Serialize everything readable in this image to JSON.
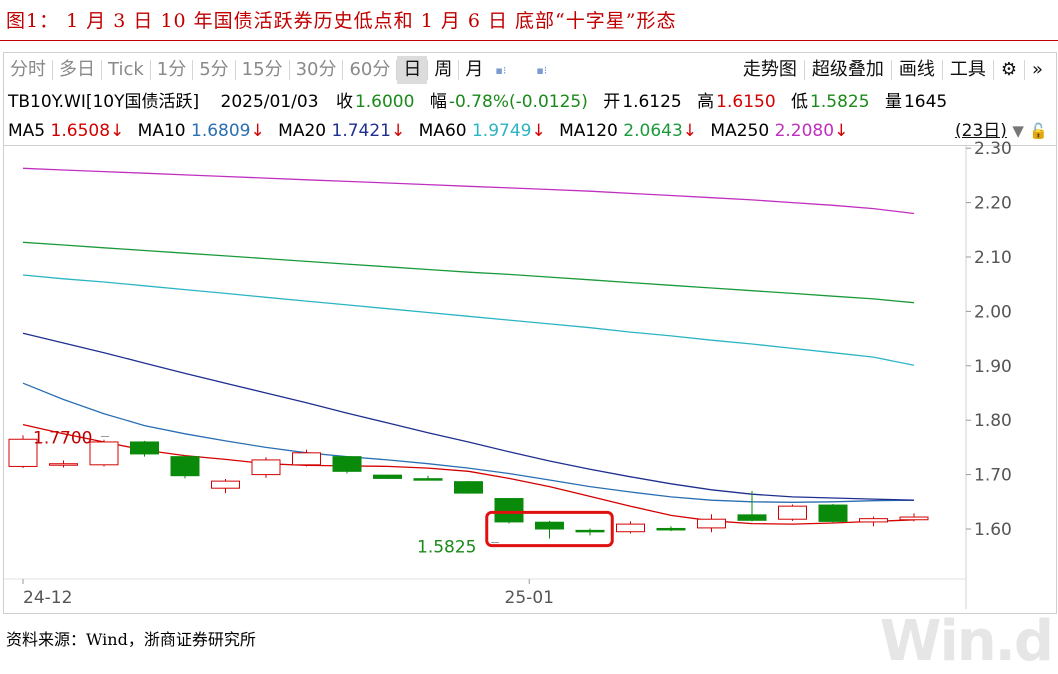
{
  "figure_title": "图1：  1 月 3 日 10 年国债活跃券历史低点和 1 月 6 日  底部“十字星”形态",
  "source": "资料来源：Wind，浙商证券研究所",
  "toolbar": {
    "left_items": [
      "分时",
      "多日",
      "Tick",
      "1分",
      "5分",
      "15分",
      "30分",
      "60分",
      "日",
      "周",
      "月"
    ],
    "active_item": "日",
    "right_items": [
      "走势图",
      "超级叠加",
      "画线",
      "工具"
    ],
    "settings_icon": "gear-icon",
    "more_icon": "double-chevron-right-icon"
  },
  "quote": {
    "code": "TB10Y.WI[10Y国债活跃]",
    "date": "2025/01/03",
    "close_label": "收",
    "close": "1.6000",
    "change_label": "幅",
    "change": "-0.78%(-0.0125)",
    "open_label": "开",
    "open": "1.6125",
    "high_label": "高",
    "high": "1.6150",
    "low_label": "低",
    "low": "1.5825",
    "volume_label": "量",
    "volume": "1645"
  },
  "ma_legend": [
    {
      "name": "MA5",
      "value": "1.6508",
      "arrow": "↓",
      "color": "#d40000"
    },
    {
      "name": "MA10",
      "value": "1.6809",
      "arrow": "↓",
      "color": "#2a6fb3"
    },
    {
      "name": "MA20",
      "value": "1.7421",
      "arrow": "↓",
      "color": "#1f2f8f"
    },
    {
      "name": "MA60",
      "value": "1.9749",
      "arrow": "↓",
      "color": "#2bb5c4"
    },
    {
      "name": "MA120",
      "value": "2.0643",
      "arrow": "↓",
      "color": "#1a9a3a"
    },
    {
      "name": "MA250",
      "value": "2.2080",
      "arrow": "↓",
      "color": "#c02fc0"
    }
  ],
  "days_ctrl": "(23日)",
  "watermark": "Win.d",
  "chart_data": {
    "type": "candlestick",
    "ylim": [
      1.55,
      2.32
    ],
    "yticks": [
      "2.30",
      "2.20",
      "2.10",
      "2.00",
      "1.90",
      "1.80",
      "1.70",
      "1.60"
    ],
    "xtick_labels": [
      {
        "label": "24-12",
        "index": 0
      },
      {
        "label": "25-01",
        "index": 12.5
      }
    ],
    "annotations": [
      {
        "text": "1.7700",
        "index": 0,
        "value": 1.77
      },
      {
        "text": "1.5825",
        "index": 12,
        "value": 1.5825
      }
    ],
    "highlight_range": {
      "from_index": 11.5,
      "to_index": 14.5,
      "ymin": 1.575,
      "ymax": 1.625
    },
    "candles": [
      {
        "o": 1.715,
        "h": 1.772,
        "l": 1.712,
        "c": 1.765
      },
      {
        "o": 1.718,
        "h": 1.726,
        "l": 1.713,
        "c": 1.72
      },
      {
        "o": 1.718,
        "h": 1.764,
        "l": 1.715,
        "c": 1.76
      },
      {
        "o": 1.76,
        "h": 1.762,
        "l": 1.733,
        "c": 1.738
      },
      {
        "o": 1.733,
        "h": 1.735,
        "l": 1.693,
        "c": 1.698
      },
      {
        "o": 1.675,
        "h": 1.692,
        "l": 1.666,
        "c": 1.688
      },
      {
        "o": 1.7,
        "h": 1.732,
        "l": 1.694,
        "c": 1.727
      },
      {
        "o": 1.718,
        "h": 1.746,
        "l": 1.715,
        "c": 1.74
      },
      {
        "o": 1.733,
        "h": 1.734,
        "l": 1.702,
        "c": 1.706
      },
      {
        "o": 1.699,
        "h": 1.7,
        "l": 1.692,
        "c": 1.693
      },
      {
        "o": 1.6925,
        "h": 1.698,
        "l": 1.691,
        "c": 1.692
      },
      {
        "o": 1.687,
        "h": 1.688,
        "l": 1.665,
        "c": 1.666
      },
      {
        "o": 1.656,
        "h": 1.657,
        "l": 1.61,
        "c": 1.613
      },
      {
        "o": 1.6125,
        "h": 1.615,
        "l": 1.5825,
        "c": 1.6
      },
      {
        "o": 1.5975,
        "h": 1.601,
        "l": 1.588,
        "c": 1.597
      },
      {
        "o": 1.595,
        "h": 1.614,
        "l": 1.592,
        "c": 1.609
      },
      {
        "o": 1.601,
        "h": 1.605,
        "l": 1.596,
        "c": 1.6
      },
      {
        "o": 1.602,
        "h": 1.627,
        "l": 1.594,
        "c": 1.618
      },
      {
        "o": 1.626,
        "h": 1.67,
        "l": 1.614,
        "c": 1.616
      },
      {
        "o": 1.618,
        "h": 1.645,
        "l": 1.615,
        "c": 1.642
      },
      {
        "o": 1.644,
        "h": 1.646,
        "l": 1.612,
        "c": 1.614
      },
      {
        "o": 1.613,
        "h": 1.623,
        "l": 1.605,
        "c": 1.619
      },
      {
        "o": 1.617,
        "h": 1.629,
        "l": 1.614,
        "c": 1.622
      }
    ],
    "ma_lines": [
      {
        "name": "MA5",
        "color": "#d40000",
        "values": [
          1.792,
          1.775,
          1.76,
          1.745,
          1.735,
          1.728,
          1.72,
          1.717,
          1.716,
          1.715,
          1.712,
          1.706,
          1.693,
          1.678,
          1.66,
          1.642,
          1.625,
          1.615,
          1.61,
          1.609,
          1.611,
          1.614,
          1.617
        ]
      },
      {
        "name": "MA10",
        "color": "#2a6fb3",
        "values": [
          1.868,
          1.838,
          1.812,
          1.79,
          1.775,
          1.762,
          1.75,
          1.74,
          1.733,
          1.727,
          1.72,
          1.712,
          1.702,
          1.69,
          1.678,
          1.668,
          1.659,
          1.653,
          1.65,
          1.649,
          1.65,
          1.652,
          1.653
        ]
      },
      {
        "name": "MA20",
        "color": "#1f2f8f",
        "values": [
          1.96,
          1.942,
          1.924,
          1.905,
          1.886,
          1.868,
          1.85,
          1.832,
          1.813,
          1.795,
          1.777,
          1.76,
          1.742,
          1.725,
          1.71,
          1.696,
          1.683,
          1.672,
          1.664,
          1.659,
          1.657,
          1.655,
          1.653
        ]
      },
      {
        "name": "MA60",
        "color": "#2bb5c4",
        "values": [
          2.067,
          2.06,
          2.054,
          2.047,
          2.04,
          2.033,
          2.026,
          2.019,
          2.012,
          2.005,
          1.998,
          1.991,
          1.984,
          1.977,
          1.97,
          1.962,
          1.955,
          1.947,
          1.94,
          1.932,
          1.924,
          1.916,
          1.901
        ]
      },
      {
        "name": "MA120",
        "color": "#1a9a3a",
        "values": [
          2.127,
          2.122,
          2.117,
          2.112,
          2.107,
          2.102,
          2.097,
          2.092,
          2.087,
          2.082,
          2.077,
          2.072,
          2.068,
          2.063,
          2.058,
          2.053,
          2.048,
          2.043,
          2.038,
          2.033,
          2.028,
          2.023,
          2.016
        ]
      },
      {
        "name": "MA250",
        "color": "#c02fc0",
        "values": [
          2.263,
          2.26,
          2.257,
          2.254,
          2.251,
          2.248,
          2.245,
          2.242,
          2.239,
          2.236,
          2.233,
          2.23,
          2.227,
          2.224,
          2.221,
          2.217,
          2.213,
          2.209,
          2.205,
          2.2,
          2.195,
          2.189,
          2.18
        ]
      }
    ]
  }
}
